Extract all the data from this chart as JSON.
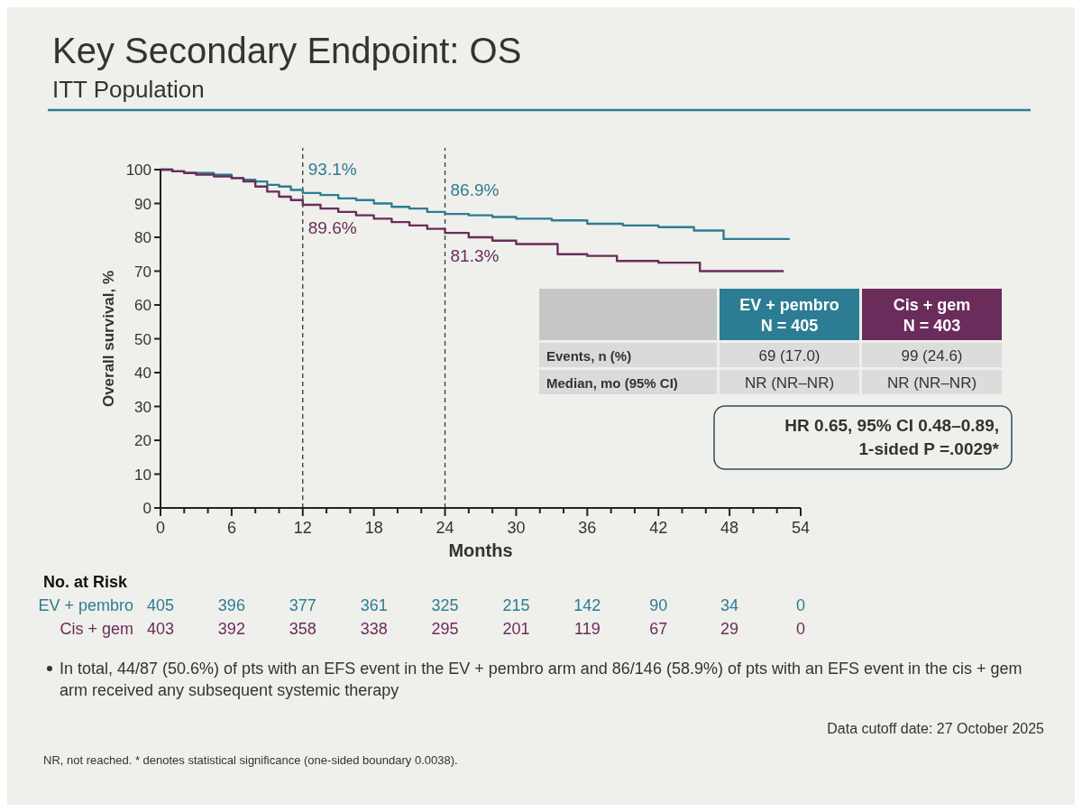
{
  "chart_data": {
    "type": "step",
    "title": "Key Secondary Endpoint: OS",
    "subtitle": "ITT Population",
    "xlabel": "Months",
    "ylabel": "Overall survival, %",
    "xlim": [
      0,
      54
    ],
    "ylim": [
      0,
      100
    ],
    "xticks": [
      0,
      {
        "value": 2,
        "label": null
      },
      {
        "value": 4,
        "label": null
      },
      6,
      {
        "value": 8,
        "label": null
      },
      {
        "value": 10,
        "label": null
      },
      12,
      {
        "value": 14,
        "label": null
      },
      {
        "value": 16,
        "label": null
      },
      18,
      {
        "value": 20,
        "label": null
      },
      {
        "value": 22,
        "label": null
      },
      24,
      {
        "value": 26,
        "label": null
      },
      {
        "value": 28,
        "label": null
      },
      30,
      {
        "value": 32,
        "label": null
      },
      {
        "value": 34,
        "label": null
      },
      36,
      {
        "value": 38,
        "label": null
      },
      {
        "value": 40,
        "label": null
      },
      42,
      {
        "value": 44,
        "label": null
      },
      {
        "value": 46,
        "label": null
      },
      48,
      {
        "value": 50,
        "label": null
      },
      {
        "value": 52,
        "label": null
      },
      54
    ],
    "yticks": [
      0,
      10,
      20,
      30,
      40,
      50,
      60,
      70,
      80,
      90,
      100
    ],
    "series": [
      {
        "name": "EV + pembro",
        "color": "#2c7d93",
        "x": [
          0,
          1,
          2,
          3,
          4.5,
          6,
          7,
          8,
          9,
          10,
          11,
          12,
          13.5,
          15,
          16.5,
          18,
          19.5,
          21,
          22.5,
          24,
          26,
          28,
          30,
          33,
          36,
          39,
          42,
          45,
          47.5,
          53
        ],
        "values": [
          100,
          99.5,
          99,
          99,
          98.5,
          97.5,
          97,
          96.5,
          95.5,
          95,
          94,
          93.1,
          92.5,
          91.5,
          91,
          90,
          89,
          88.5,
          87.5,
          86.9,
          86.5,
          86,
          85.5,
          85,
          84,
          83.5,
          83,
          82,
          79.5,
          79.5
        ],
        "value_labels": [
          null,
          null,
          null,
          null,
          null,
          null,
          null,
          null,
          null,
          null,
          null,
          "93.1%",
          null,
          null,
          null,
          null,
          null,
          null,
          null,
          "86.9%",
          null,
          null,
          null,
          null,
          null,
          null,
          null,
          null,
          null,
          null
        ]
      },
      {
        "name": "Cis + gem",
        "color": "#6a2c5a",
        "x": [
          0,
          1,
          2,
          3,
          4.5,
          6,
          7,
          8,
          9,
          10,
          11,
          12,
          13.5,
          15,
          16.5,
          18,
          19.5,
          21,
          22.5,
          24,
          26,
          28,
          30,
          33.5,
          36,
          38.5,
          42,
          45.5,
          52.5
        ],
        "values": [
          100,
          99.5,
          99,
          98.5,
          98,
          97.5,
          96.5,
          95,
          93.5,
          92,
          91,
          89.6,
          88.5,
          87.5,
          86.5,
          85.5,
          84.5,
          83.5,
          82.5,
          81.3,
          80,
          79,
          78,
          75,
          74.5,
          73,
          72.5,
          70,
          70
        ],
        "value_labels": [
          null,
          null,
          null,
          null,
          null,
          null,
          null,
          null,
          null,
          null,
          null,
          "89.6%",
          null,
          null,
          null,
          null,
          null,
          null,
          null,
          "81.3%",
          null,
          null,
          null,
          null,
          null,
          null,
          null,
          null,
          null
        ]
      }
    ],
    "ref_lines": [
      {
        "axis": "x",
        "value": 12,
        "color": "#3a3a3a",
        "line_style": "dashed"
      },
      {
        "axis": "x",
        "value": 24,
        "color": "#3a3a3a",
        "line_style": "dashed"
      }
    ],
    "legend": "right",
    "annotations": [
      "N = 405",
      "N = 403",
      "Events, n (%)",
      "Median, mo (95% CI)",
      "69 (17.0)",
      "99 (24.6)",
      "NR (NR–NR)",
      "NR (NR–NR)",
      "HR 0.65, 95% CI 0.48–0.89,",
      "1-sided P =.0029*",
      "No. at Risk",
      "405",
      "396",
      "377",
      "361",
      "325",
      "215",
      "142",
      "90",
      "34",
      "0",
      "403",
      "392",
      "358",
      "338",
      "295",
      "201",
      "119",
      "67",
      "29",
      "0",
      "In total, 44/87 (50.6%) of pts with an EFS event in the EV + pembro arm and 86/146 (58.9%) of pts with an EFS event in the cis + gem arm received any subsequent systemic therapy",
      "Data cutoff date: 27 October 2025",
      "NR, not reached. * denotes statistical significance (one-sided boundary 0.0038)."
    ]
  }
}
